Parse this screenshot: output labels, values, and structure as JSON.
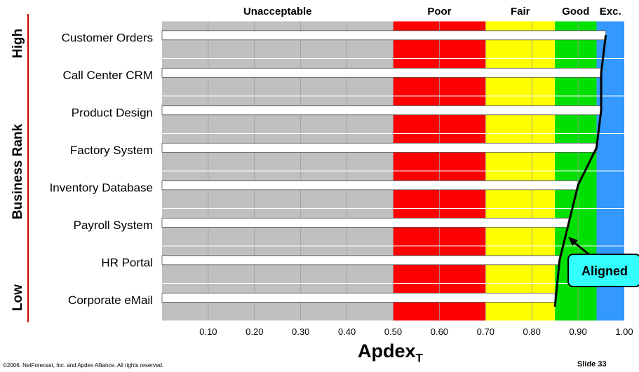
{
  "chart_data": {
    "type": "bar",
    "orientation": "horizontal",
    "categories": [
      "Customer Orders",
      "Call Center CRM",
      "Product Design",
      "Factory System",
      "Inventory Database",
      "Payroll System",
      "HR Portal",
      "Corporate eMail"
    ],
    "values": [
      0.96,
      0.95,
      0.95,
      0.94,
      0.9,
      0.88,
      0.86,
      0.85
    ],
    "xlabel": "Apdex",
    "xlabel_sub": "T",
    "ylabel": "Business Rank",
    "rank_high": "High",
    "rank_low": "Low",
    "xlim": [
      0.0,
      1.0
    ],
    "x_ticks": [
      "0.10",
      "0.20",
      "0.30",
      "0.40",
      "0.50",
      "0.60",
      "0.70",
      "0.80",
      "0.90",
      "1.00"
    ],
    "zones": [
      {
        "label": "Unacceptable",
        "from": 0.0,
        "to": 0.5,
        "color": "#c0c0c0"
      },
      {
        "label": "Poor",
        "from": 0.5,
        "to": 0.7,
        "color": "#ff0000"
      },
      {
        "label": "Fair",
        "from": 0.7,
        "to": 0.85,
        "color": "#ffff00"
      },
      {
        "label": "Good",
        "from": 0.85,
        "to": 0.94,
        "color": "#00e000"
      },
      {
        "label": "Exc.",
        "from": 0.94,
        "to": 1.0,
        "color": "#3399ff"
      }
    ],
    "bar_color": "#ffffff",
    "trend_line_color": "#000000",
    "callout": "Aligned",
    "callout_color": "#33ffff"
  },
  "footer": {
    "copyright": "©2006. NetForecast, Inc. and Apdex Alliance. All rights reserved.",
    "slide": "Slide 33"
  }
}
